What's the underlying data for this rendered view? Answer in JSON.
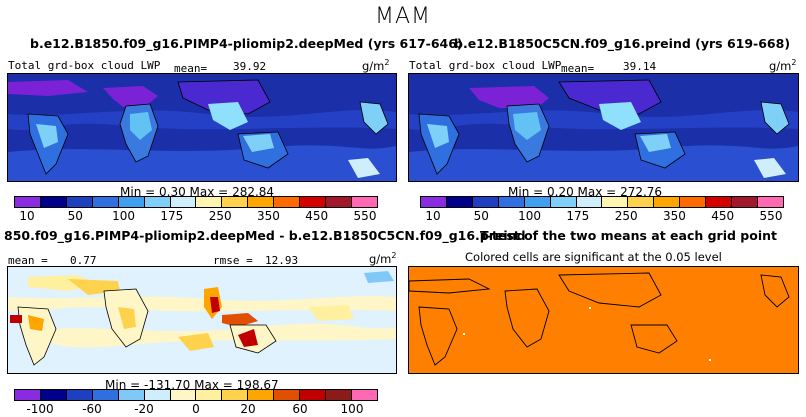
{
  "season": "MAM",
  "panels": {
    "top_left": {
      "title": "b.e12.B1850.f09_g16.PIMP4-pliomip2.deepMed (yrs 617-646)",
      "field_label": "Total grd-box cloud LWP",
      "mean_label": "mean=",
      "mean_value": "39.92",
      "units": "g/m",
      "units_sup": "2",
      "min_label": "Min =",
      "min_value": "0.30",
      "max_label": "Max =",
      "max_value": "282.84"
    },
    "top_right": {
      "title": "b.e12.B1850C5CN.f09_g16.preind (yrs 619-668)",
      "field_label": "Total grd-box cloud LWP",
      "mean_label": "mean=",
      "mean_value": "39.14",
      "units": "g/m",
      "units_sup": "2",
      "min_label": "Min =",
      "min_value": "0.20",
      "max_label": "Max =",
      "max_value": "272.76"
    },
    "bottom_left": {
      "title": "850.f09_g16.PIMP4-pliomip2.deepMed - b.e12.B1850C5CN.f09_g16.preind",
      "mean_label": "mean =",
      "mean_value": "0.77",
      "rmse_label": "rmse =",
      "rmse_value": "12.93",
      "units": "g/m",
      "units_sup": "2",
      "min_label": "Min =",
      "min_value": "-131.70",
      "max_label": "Max =",
      "max_value": "198.67"
    },
    "bottom_right": {
      "title": "T-test of the two means at each grid point",
      "subtitle": "Colored cells are significant at the 0.05 level"
    }
  },
  "chart_data": [
    {
      "type": "heatmap",
      "title": "b.e12.B1850.f09_g16.PIMP4-pliomip2.deepMed (yrs 617-646)",
      "variable": "Total grd-box cloud LWP",
      "units": "g/m2",
      "mean": 39.92,
      "min": 0.3,
      "max": 282.84,
      "colorbar_ticks": [
        "10",
        "50",
        "100",
        "175",
        "250",
        "350",
        "450",
        "550"
      ],
      "colorbar_colors": [
        "#8a2be2",
        "#00008b",
        "#1e3fbf",
        "#2f6fe0",
        "#3fa0f0",
        "#7fd0f8",
        "#cfeefc",
        "#fff4b0",
        "#ffd24d",
        "#ffa500",
        "#ff6a00",
        "#d40000",
        "#a0182a",
        "#ff69b4"
      ]
    },
    {
      "type": "heatmap",
      "title": "b.e12.B1850C5CN.f09_g16.preind (yrs 619-668)",
      "variable": "Total grd-box cloud LWP",
      "units": "g/m2",
      "mean": 39.14,
      "min": 0.2,
      "max": 272.76,
      "colorbar_ticks": [
        "10",
        "50",
        "100",
        "175",
        "250",
        "350",
        "450",
        "550"
      ],
      "colorbar_colors": [
        "#8a2be2",
        "#00008b",
        "#1e3fbf",
        "#2f6fe0",
        "#3fa0f0",
        "#7fd0f8",
        "#cfeefc",
        "#fff4b0",
        "#ffd24d",
        "#ffa500",
        "#ff6a00",
        "#d40000",
        "#a0182a",
        "#ff69b4"
      ]
    },
    {
      "type": "heatmap",
      "title": "850.f09_g16.PIMP4-pliomip2.deepMed - b.e12.B1850C5CN.f09_g16.preind",
      "units": "g/m2",
      "mean": 0.77,
      "rmse": 12.93,
      "min": -131.7,
      "max": 198.67,
      "colorbar_ticks": [
        "-100",
        "-60",
        "-20",
        "0",
        "20",
        "60",
        "100"
      ],
      "colorbar_colors": [
        "#8a2be2",
        "#00008b",
        "#1e3fbf",
        "#2f6fe0",
        "#7fc8f8",
        "#cfeefc",
        "#fff6c8",
        "#fff0a0",
        "#ffd24d",
        "#ffa500",
        "#e05000",
        "#c00000",
        "#8b1a1a",
        "#ff69b4"
      ]
    },
    {
      "type": "heatmap",
      "title": "T-test of the two means at each grid point",
      "subtitle": "Colored cells are significant at the 0.05 level",
      "significance_level": 0.05,
      "significant_color": "#ff7f00"
    }
  ],
  "colors": {
    "ocean_dark": "#1a2fa8",
    "ocean_mid": "#2440c4",
    "ttest_orange": "#ff7f00"
  }
}
